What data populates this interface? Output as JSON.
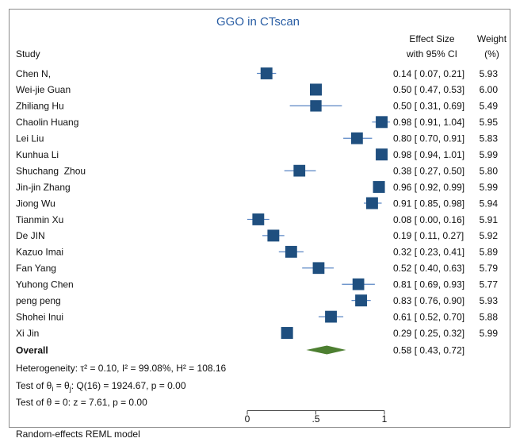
{
  "chart_data": {
    "type": "scatter",
    "title": "GGO in CTscan",
    "columns": {
      "study": "Study",
      "effect_size": [
        "Effect Size",
        "with 95% CI"
      ],
      "weight": [
        "Weight",
        "(%)"
      ]
    },
    "studies": [
      {
        "study": "Chen N,",
        "es": 0.14,
        "ci": [
          0.07,
          0.21
        ],
        "weight": 5.93
      },
      {
        "study": "Wei-jie Guan",
        "es": 0.5,
        "ci": [
          0.47,
          0.53
        ],
        "weight": 6.0
      },
      {
        "study": "Zhiliang Hu",
        "es": 0.5,
        "ci": [
          0.31,
          0.69
        ],
        "weight": 5.49
      },
      {
        "study": "Chaolin Huang",
        "es": 0.98,
        "ci": [
          0.91,
          1.04
        ],
        "weight": 5.95
      },
      {
        "study": "Lei Liu",
        "es": 0.8,
        "ci": [
          0.7,
          0.91
        ],
        "weight": 5.83
      },
      {
        "study": "Kunhua Li",
        "es": 0.98,
        "ci": [
          0.94,
          1.01
        ],
        "weight": 5.99
      },
      {
        "study": "Shuchang  Zhou",
        "es": 0.38,
        "ci": [
          0.27,
          0.5
        ],
        "weight": 5.8
      },
      {
        "study": "Jin-jin Zhang",
        "es": 0.96,
        "ci": [
          0.92,
          0.99
        ],
        "weight": 5.99
      },
      {
        "study": "Jiong Wu",
        "es": 0.91,
        "ci": [
          0.85,
          0.98
        ],
        "weight": 5.94
      },
      {
        "study": "Tianmin Xu",
        "es": 0.08,
        "ci": [
          0.0,
          0.16
        ],
        "weight": 5.91
      },
      {
        "study": "De JIN",
        "es": 0.19,
        "ci": [
          0.11,
          0.27
        ],
        "weight": 5.92
      },
      {
        "study": "Kazuo Imai",
        "es": 0.32,
        "ci": [
          0.23,
          0.41
        ],
        "weight": 5.89
      },
      {
        "study": "Fan Yang",
        "es": 0.52,
        "ci": [
          0.4,
          0.63
        ],
        "weight": 5.79
      },
      {
        "study": "Yuhong Chen",
        "es": 0.81,
        "ci": [
          0.69,
          0.93
        ],
        "weight": 5.77
      },
      {
        "study": "peng peng",
        "es": 0.83,
        "ci": [
          0.76,
          0.9
        ],
        "weight": 5.93
      },
      {
        "study": "Shohei Inui",
        "es": 0.61,
        "ci": [
          0.52,
          0.7
        ],
        "weight": 5.88
      },
      {
        "study": "Xi Jin",
        "es": 0.29,
        "ci": [
          0.25,
          0.32
        ],
        "weight": 5.99
      }
    ],
    "overall": {
      "label": "Overall",
      "es": 0.58,
      "ci": [
        0.43,
        0.72
      ]
    },
    "heterogeneity": "Heterogeneity: τ² = 0.10, I² = 99.08%, H² = 108.16",
    "test_homogeneity": [
      "Test of θ",
      "i",
      " = θ",
      "j",
      ": Q(16) = 1924.67, p = 0.00"
    ],
    "test_effect": "Test of θ = 0: z = 7.61, p = 0.00",
    "xlim": [
      0,
      1
    ],
    "xticks": [
      0,
      0.5,
      1
    ],
    "xtick_labels": [
      "0",
      ".5",
      "1"
    ],
    "note": "Random-effects REML model",
    "colors": {
      "title": "#2a5ea4",
      "marker": "#1f4f7f",
      "ci_line": "#5a86c4",
      "diamond": "#4d7f31"
    }
  }
}
